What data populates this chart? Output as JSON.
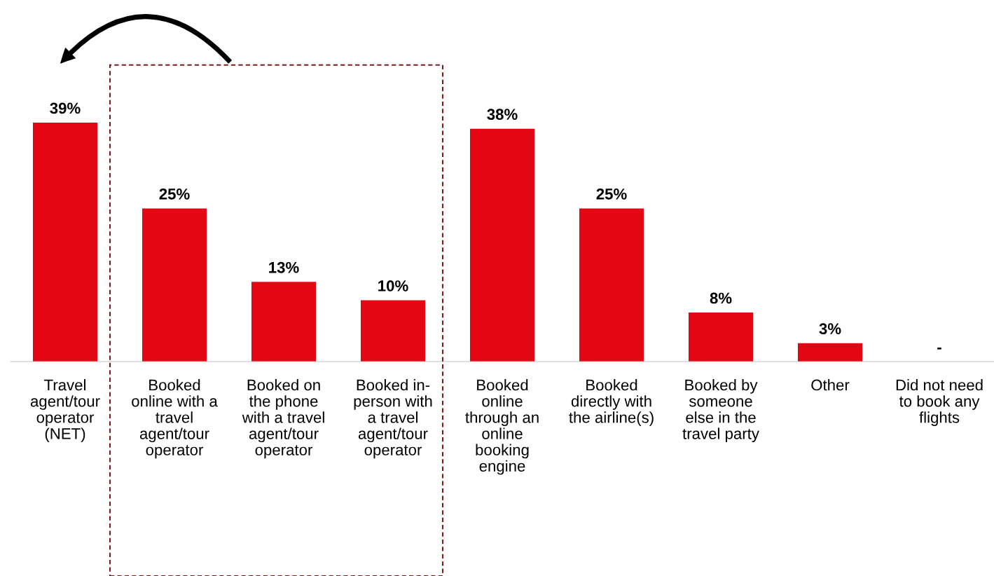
{
  "chart_data": {
    "type": "bar",
    "categories": [
      "Travel\nagent/tour\noperator\n(NET)",
      "Booked\nonline with a\ntravel\nagent/tour\noperator",
      "Booked on\nthe phone\nwith a travel\nagent/tour\noperator",
      "Booked in-\nperson with\na travel\nagent/tour\noperator",
      "Booked\nonline\nthrough an\nonline\nbooking\nengine",
      "Booked\ndirectly with\nthe airline(s)",
      "Booked by\nsomeone\nelse in the\ntravel party",
      "Other",
      "Did not need\nto book any\nflights"
    ],
    "values": [
      39,
      25,
      13,
      10,
      38,
      25,
      8,
      3,
      null
    ],
    "value_labels": [
      "39%",
      "25%",
      "13%",
      "10%",
      "38%",
      "25%",
      "8%",
      "3%",
      "-"
    ],
    "color": "#e30613",
    "grid": false,
    "legend": false
  }
}
